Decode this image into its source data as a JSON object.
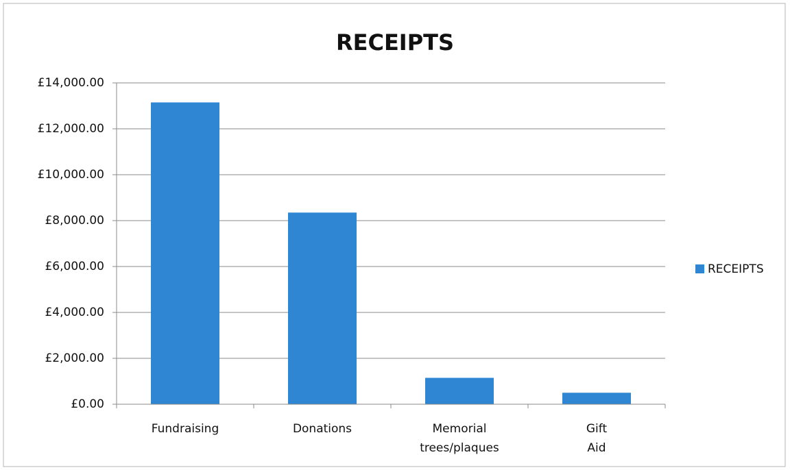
{
  "chart_data": {
    "type": "bar",
    "title": "RECEIPTS",
    "categories": [
      "Fundraising",
      "Donations",
      "Memorial trees/plaques",
      "Gift Aid"
    ],
    "series": [
      {
        "name": "RECEIPTS",
        "color": "#2f87d4",
        "values": [
          13150,
          8350,
          1150,
          500
        ]
      }
    ],
    "ylim": [
      0,
      14000
    ],
    "yticks": [
      {
        "value": 0,
        "label": "£0.00"
      },
      {
        "value": 2000,
        "label": "£2,000.00"
      },
      {
        "value": 4000,
        "label": "£4,000.00"
      },
      {
        "value": 6000,
        "label": "£6,000.00"
      },
      {
        "value": 8000,
        "label": "£8,000.00"
      },
      {
        "value": 10000,
        "label": "£10,000.00"
      },
      {
        "value": 12000,
        "label": "£12,000.00"
      },
      {
        "value": 14000,
        "label": "£14,000.00"
      }
    ],
    "grid": true,
    "legend": "right"
  }
}
